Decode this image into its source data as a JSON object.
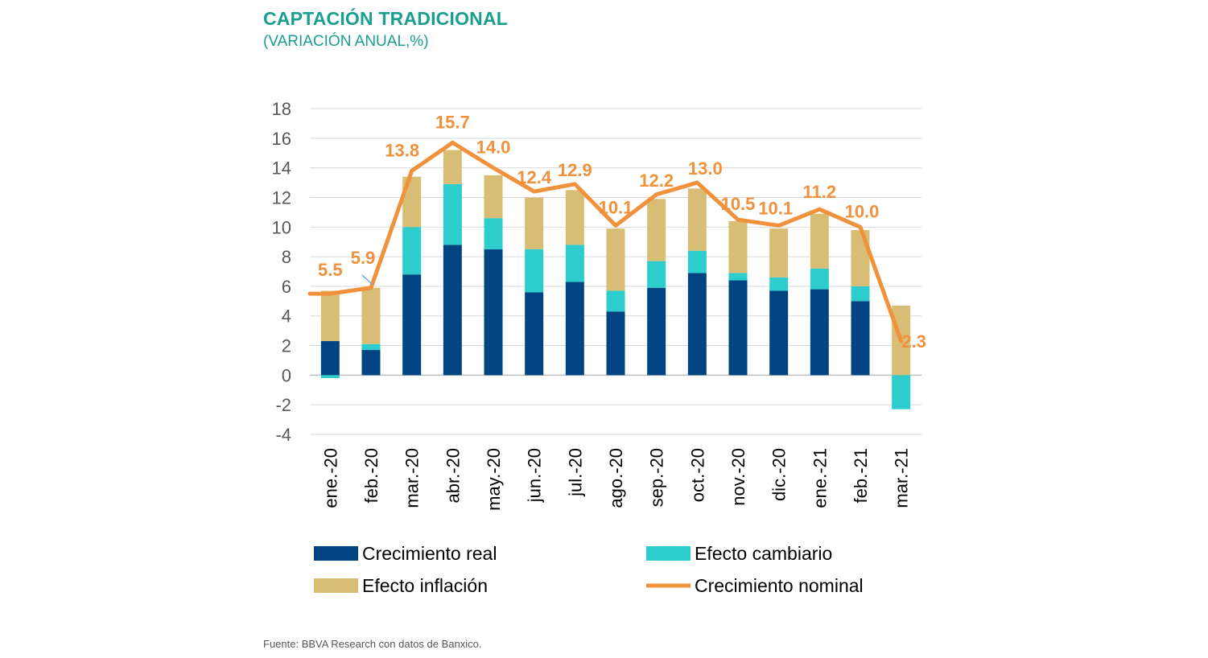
{
  "title": "CAPTACIÓN TRADICIONAL",
  "subtitle": "(VARIACIÓN ANUAL,%)",
  "source": "Fuente: BBVA Research con datos de Banxico.",
  "colors": {
    "real": "#004481",
    "cambiario": "#2dcccd",
    "inflacion": "#d8be75",
    "nominal": "#f0913c",
    "title": "#1a9e8f"
  },
  "chart_data": {
    "type": "bar",
    "stacked": true,
    "categories": [
      "ene.-20",
      "feb.-20",
      "mar.-20",
      "abr.-20",
      "may.-20",
      "jun.-20",
      "jul.-20",
      "ago.-20",
      "sep.-20",
      "oct.-20",
      "nov.-20",
      "dic.-20",
      "ene.-21",
      "feb.-21",
      "mar.-21"
    ],
    "series": [
      {
        "name": "Crecimiento real",
        "type": "bar",
        "values": [
          2.3,
          1.7,
          6.8,
          8.8,
          8.5,
          5.6,
          6.3,
          4.3,
          5.9,
          6.9,
          6.4,
          5.7,
          5.8,
          5.0,
          0.0
        ]
      },
      {
        "name": "Efecto cambiario",
        "type": "bar",
        "values": [
          -0.2,
          0.4,
          3.2,
          4.1,
          2.1,
          2.9,
          2.5,
          1.4,
          1.8,
          1.5,
          0.5,
          0.9,
          1.4,
          1.0,
          -2.3
        ]
      },
      {
        "name": "Efecto inflación",
        "type": "bar",
        "values": [
          3.4,
          3.8,
          3.4,
          2.3,
          2.9,
          3.5,
          3.7,
          4.2,
          4.2,
          4.2,
          3.5,
          3.3,
          3.7,
          3.8,
          4.7
        ]
      },
      {
        "name": "Crecimiento nominal",
        "type": "line",
        "values": [
          5.5,
          5.9,
          13.8,
          15.7,
          14.0,
          12.4,
          12.9,
          10.1,
          12.2,
          13.0,
          10.5,
          10.1,
          11.2,
          10.0,
          2.3
        ]
      }
    ],
    "data_labels": [
      "5.5",
      "5.9",
      "13.8",
      "15.7",
      "14.0",
      "12.4",
      "12.9",
      "10.1",
      "12.2",
      "13.0",
      "10.5",
      "10.1",
      "11.2",
      "10.0",
      "2.3"
    ],
    "y_ticks": [
      "18",
      "16",
      "14",
      "12",
      "10",
      "8",
      "6",
      "4",
      "2",
      "0",
      "-2",
      "-4"
    ],
    "ylim": [
      -4,
      18
    ],
    "grid": true,
    "legend": "bottom"
  }
}
